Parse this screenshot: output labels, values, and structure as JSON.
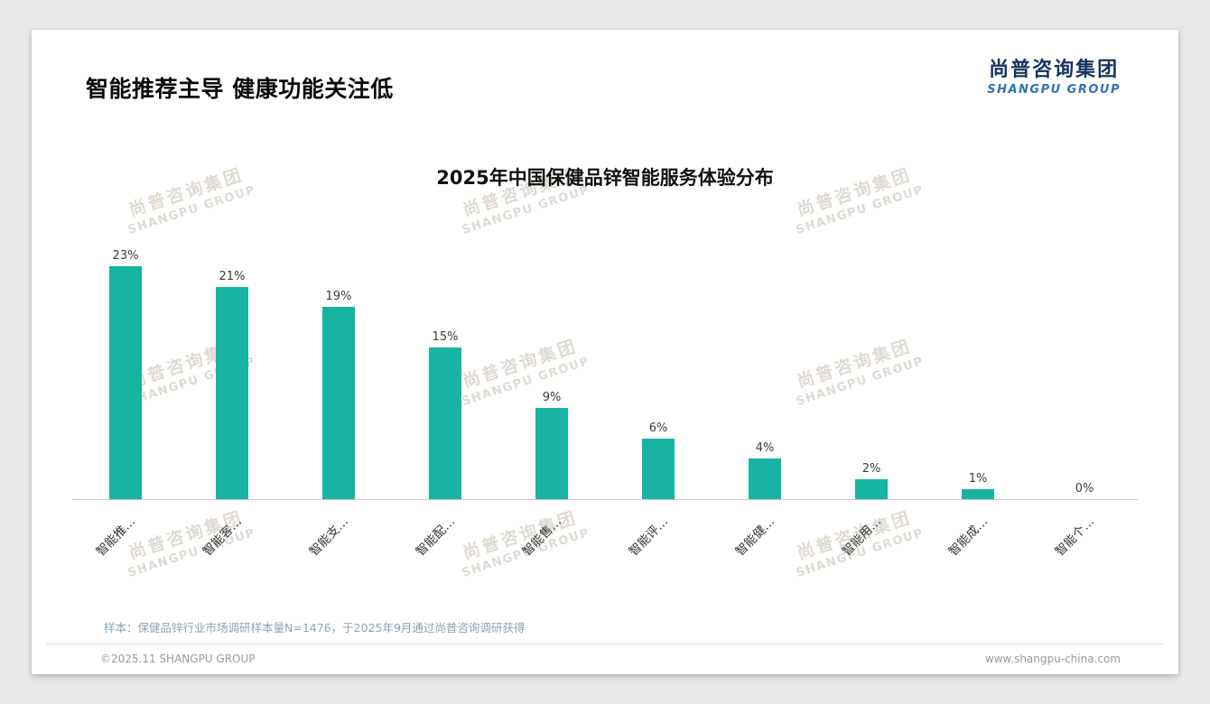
{
  "page": {
    "title": "智能推荐主导 健康功能关注低"
  },
  "logo": {
    "name_cn": "尚普咨询集团",
    "name_en": "SHANGPU GROUP"
  },
  "watermark": {
    "line1": "尚普咨询集团",
    "line2": "SHANGPU GROUP"
  },
  "chart_data": {
    "type": "bar",
    "title": "2025年中国保健品锌智能服务体验分布",
    "categories": [
      "智能推…",
      "智能客…",
      "智能支…",
      "智能配…",
      "智能售…",
      "智能评…",
      "智能健…",
      "智能用…",
      "智能成…",
      "智能个…"
    ],
    "values": [
      23,
      21,
      19,
      15,
      9,
      6,
      4,
      2,
      1,
      0
    ],
    "unit": "%",
    "ylim": [
      0,
      25
    ],
    "bar_color": "#17b3a3",
    "value_labels": [
      "23%",
      "21%",
      "19%",
      "15%",
      "9%",
      "6%",
      "4%",
      "2%",
      "1%",
      "0%"
    ],
    "grid": false,
    "legend": false
  },
  "footer": {
    "note": "样本：保健品锌行业市场调研样本量N=1476，于2025年9月通过尚普咨询调研获得",
    "copyright": "©2025.11 SHANGPU GROUP",
    "website": "www.shangpu-china.com"
  }
}
